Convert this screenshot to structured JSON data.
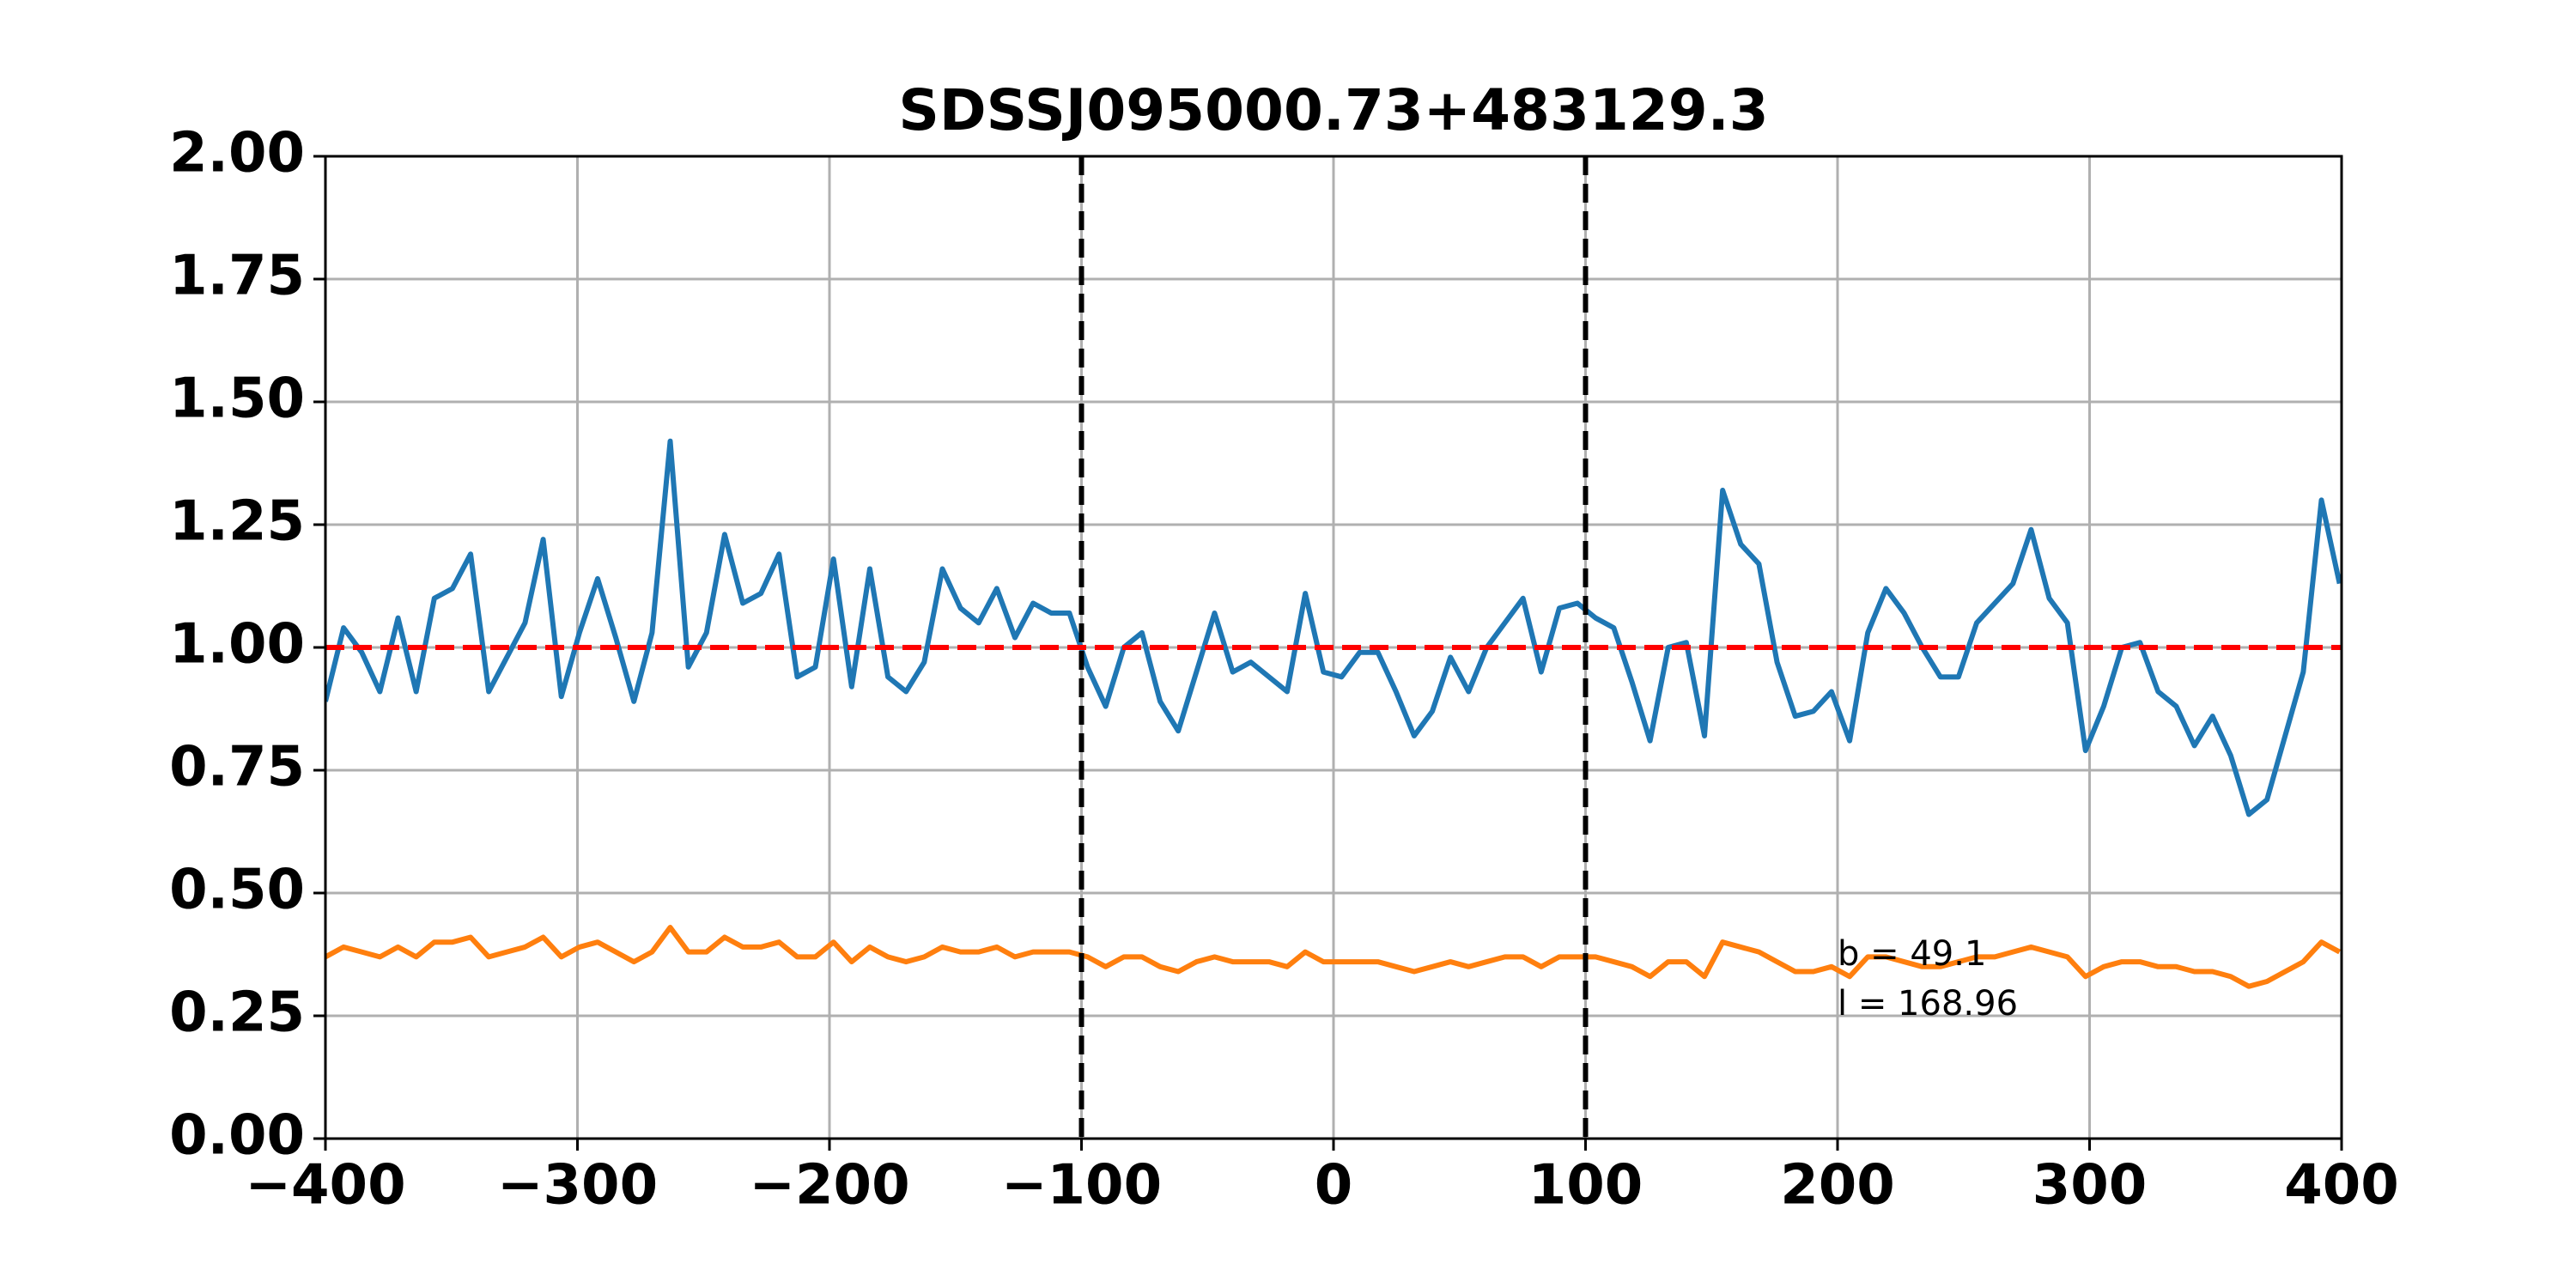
{
  "chart_data": {
    "type": "line",
    "title": "SDSSJ095000.73+483129.3",
    "x": [
      -400,
      -392.8,
      -385.6,
      -378.4,
      -371.2,
      -364,
      -356.8,
      -349.6,
      -342.4,
      -335.2,
      -328,
      -320.8,
      -313.6,
      -306.4,
      -299.2,
      -292,
      -284.8,
      -277.6,
      -270.4,
      -263.2,
      -256,
      -248.8,
      -241.6,
      -234.4,
      -227.2,
      -220,
      -212.8,
      -205.6,
      -198.4,
      -191.2,
      -184,
      -176.8,
      -169.6,
      -162.4,
      -155.2,
      -148,
      -140.8,
      -133.6,
      -126.4,
      -119.2,
      -112,
      -104.8,
      -97.6,
      -90.4,
      -83.2,
      -76,
      -68.8,
      -61.6,
      -54.4,
      -47.2,
      -40,
      -32.8,
      -25.6,
      -18.4,
      -11.2,
      -4,
      3.2,
      10.4,
      17.6,
      24.8,
      32,
      39.2,
      46.4,
      53.6,
      60.8,
      68,
      75.2,
      82.4,
      89.6,
      96.8,
      104,
      111.2,
      118.4,
      125.6,
      132.8,
      140,
      147.2,
      154.4,
      161.6,
      168.8,
      176,
      183.2,
      190.4,
      197.6,
      204.8,
      212,
      219.2,
      226.4,
      233.6,
      240.8,
      248,
      255.2,
      262.4,
      269.6,
      276.8,
      284,
      291.2,
      298.4,
      305.6,
      312.8,
      320,
      327.2,
      334.4,
      341.6,
      348.8,
      356,
      363.2,
      370.4,
      377.6,
      384.8,
      392,
      399.2
    ],
    "series": [
      {
        "color": "#1f77b4",
        "values": [
          0.89,
          1.04,
          0.99,
          0.91,
          1.06,
          0.91,
          1.1,
          1.12,
          1.19,
          0.91,
          0.98,
          1.05,
          1.22,
          0.9,
          1.03,
          1.14,
          1.02,
          0.89,
          1.03,
          1.42,
          0.96,
          1.03,
          1.23,
          1.09,
          1.11,
          1.19,
          0.94,
          0.96,
          1.18,
          0.92,
          1.16,
          0.94,
          0.91,
          0.97,
          1.16,
          1.08,
          1.05,
          1.12,
          1.02,
          1.09,
          1.07,
          1.07,
          0.96,
          0.88,
          1.0,
          1.03,
          0.89,
          0.83,
          0.95,
          1.07,
          0.95,
          0.97,
          0.94,
          0.91,
          1.11,
          0.95,
          0.94,
          0.99,
          0.99,
          0.91,
          0.82,
          0.87,
          0.98,
          0.91,
          1.0,
          1.05,
          1.1,
          0.95,
          1.08,
          1.09,
          1.06,
          1.04,
          0.93,
          0.81,
          1.0,
          1.01,
          0.82,
          1.32,
          1.21,
          1.17,
          0.97,
          0.86,
          0.87,
          0.91,
          0.81,
          1.03,
          1.12,
          1.07,
          1.0,
          0.94,
          0.94,
          1.05,
          1.09,
          1.13,
          1.24,
          1.1,
          1.05,
          0.79,
          0.88,
          1.0,
          1.01,
          0.91,
          0.88,
          0.8,
          0.86,
          0.78,
          0.66,
          0.69,
          0.82,
          0.95,
          1.3,
          1.13
        ]
      },
      {
        "color": "#ff7f0e",
        "values": [
          0.37,
          0.39,
          0.38,
          0.37,
          0.39,
          0.37,
          0.4,
          0.4,
          0.41,
          0.37,
          0.38,
          0.39,
          0.41,
          0.37,
          0.39,
          0.4,
          0.38,
          0.36,
          0.38,
          0.43,
          0.38,
          0.38,
          0.41,
          0.39,
          0.39,
          0.4,
          0.37,
          0.37,
          0.4,
          0.36,
          0.39,
          0.37,
          0.36,
          0.37,
          0.39,
          0.38,
          0.38,
          0.39,
          0.37,
          0.38,
          0.38,
          0.38,
          0.37,
          0.35,
          0.37,
          0.37,
          0.35,
          0.34,
          0.36,
          0.37,
          0.36,
          0.36,
          0.36,
          0.35,
          0.38,
          0.36,
          0.36,
          0.36,
          0.36,
          0.35,
          0.34,
          0.35,
          0.36,
          0.35,
          0.36,
          0.37,
          0.37,
          0.35,
          0.37,
          0.37,
          0.37,
          0.36,
          0.35,
          0.33,
          0.36,
          0.36,
          0.33,
          0.4,
          0.39,
          0.38,
          0.36,
          0.34,
          0.34,
          0.35,
          0.33,
          0.37,
          0.37,
          0.36,
          0.35,
          0.35,
          0.36,
          0.37,
          0.37,
          0.38,
          0.39,
          0.38,
          0.37,
          0.33,
          0.35,
          0.36,
          0.36,
          0.35,
          0.35,
          0.34,
          0.34,
          0.33,
          0.31,
          0.32,
          0.34,
          0.36,
          0.4,
          0.38
        ]
      }
    ],
    "hline": {
      "value": 1,
      "color": "#ff0000"
    },
    "vlines": {
      "values": [
        -100,
        100
      ],
      "color": "#000000"
    },
    "annotations": [
      "b = 49.1",
      "l = 168.96"
    ],
    "xlim": [
      -400,
      400
    ],
    "xticks": [
      {
        "value": -400,
        "label": "−400"
      },
      {
        "value": -300,
        "label": "−300"
      },
      {
        "value": -200,
        "label": "−200"
      },
      {
        "value": -100,
        "label": "−100"
      },
      0,
      100,
      200,
      300,
      400
    ],
    "ylim": [
      0,
      2
    ],
    "yticks": [
      {
        "value": 0,
        "label": "0.00"
      },
      {
        "value": 0.25,
        "label": "0.25"
      },
      {
        "value": 0.5,
        "label": "0.50"
      },
      {
        "value": 0.75,
        "label": "0.75"
      },
      {
        "value": 1,
        "label": "1.00"
      },
      {
        "value": 1.25,
        "label": "1.25"
      },
      {
        "value": 1.5,
        "label": "1.50"
      },
      {
        "value": 1.75,
        "label": "1.75"
      },
      {
        "value": 2,
        "label": "2.00"
      }
    ],
    "grid": true
  }
}
